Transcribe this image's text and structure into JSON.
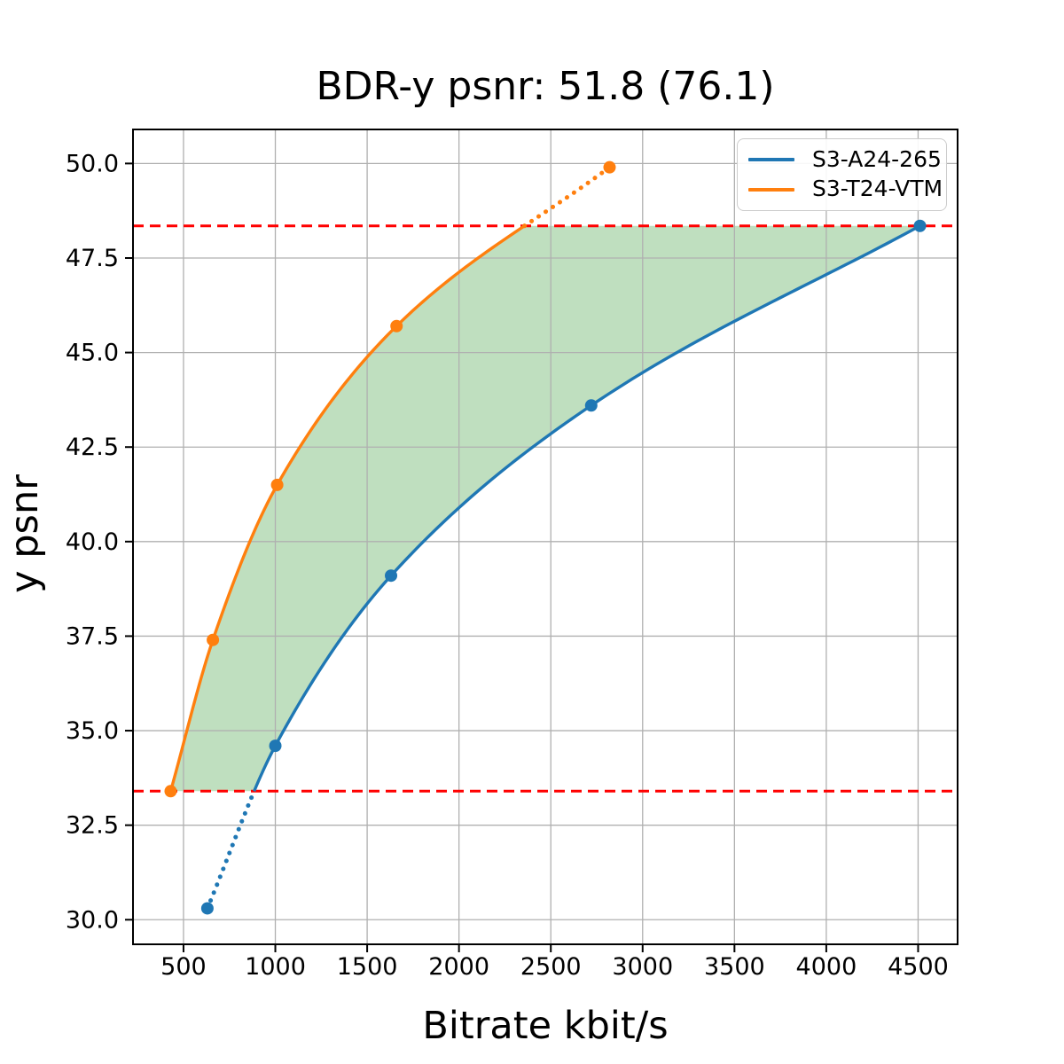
{
  "chart_data": {
    "type": "line",
    "title": "BDR-y psnr: 51.8 (76.1)",
    "xlabel": "Bitrate kbit/s",
    "ylabel": "y psnr",
    "xlim": [
      225,
      4715
    ],
    "ylim": [
      29.35,
      50.9
    ],
    "xtick_values": [
      500,
      1000,
      1500,
      2000,
      2500,
      3000,
      3500,
      4000,
      4500
    ],
    "xtick_labels": [
      "500",
      "1000",
      "1500",
      "2000",
      "2500",
      "3000",
      "3500",
      "4000",
      "4500"
    ],
    "ytick_values": [
      30.0,
      32.5,
      35.0,
      37.5,
      40.0,
      42.5,
      45.0,
      47.5,
      50.0
    ],
    "ytick_labels": [
      "30.0",
      "32.5",
      "35.0",
      "37.5",
      "40.0",
      "42.5",
      "45.0",
      "47.5",
      "50.0"
    ],
    "grid": true,
    "grid_color": "#b0b0b0",
    "series": [
      {
        "name": "S3-A24-265",
        "color": "#1f77b4",
        "marker": "circle",
        "interpolation": "pchip",
        "x": [
          630,
          1000,
          1630,
          2720,
          4510
        ],
        "y": [
          30.3,
          34.6,
          39.1,
          43.6,
          48.35
        ]
      },
      {
        "name": "S3-T24-VTM",
        "color": "#ff7f0e",
        "marker": "circle",
        "interpolation": "pchip",
        "x": [
          430,
          660,
          1010,
          1660,
          2820
        ],
        "y": [
          33.4,
          37.4,
          41.5,
          45.7,
          49.9
        ]
      }
    ],
    "overlap_psnr_range": [
      33.4,
      48.35
    ],
    "hlines": {
      "values": [
        33.4,
        48.35
      ],
      "color": "#ff0000",
      "style": "dashed"
    },
    "shaded_region": {
      "between_series": true,
      "color": "#008000",
      "alpha": 0.25
    },
    "line_style_rule": "solid inside overlap psnr range, dotted outside",
    "legend": {
      "position": "upper right",
      "entries": [
        "S3-A24-265",
        "S3-T24-VTM"
      ]
    }
  }
}
